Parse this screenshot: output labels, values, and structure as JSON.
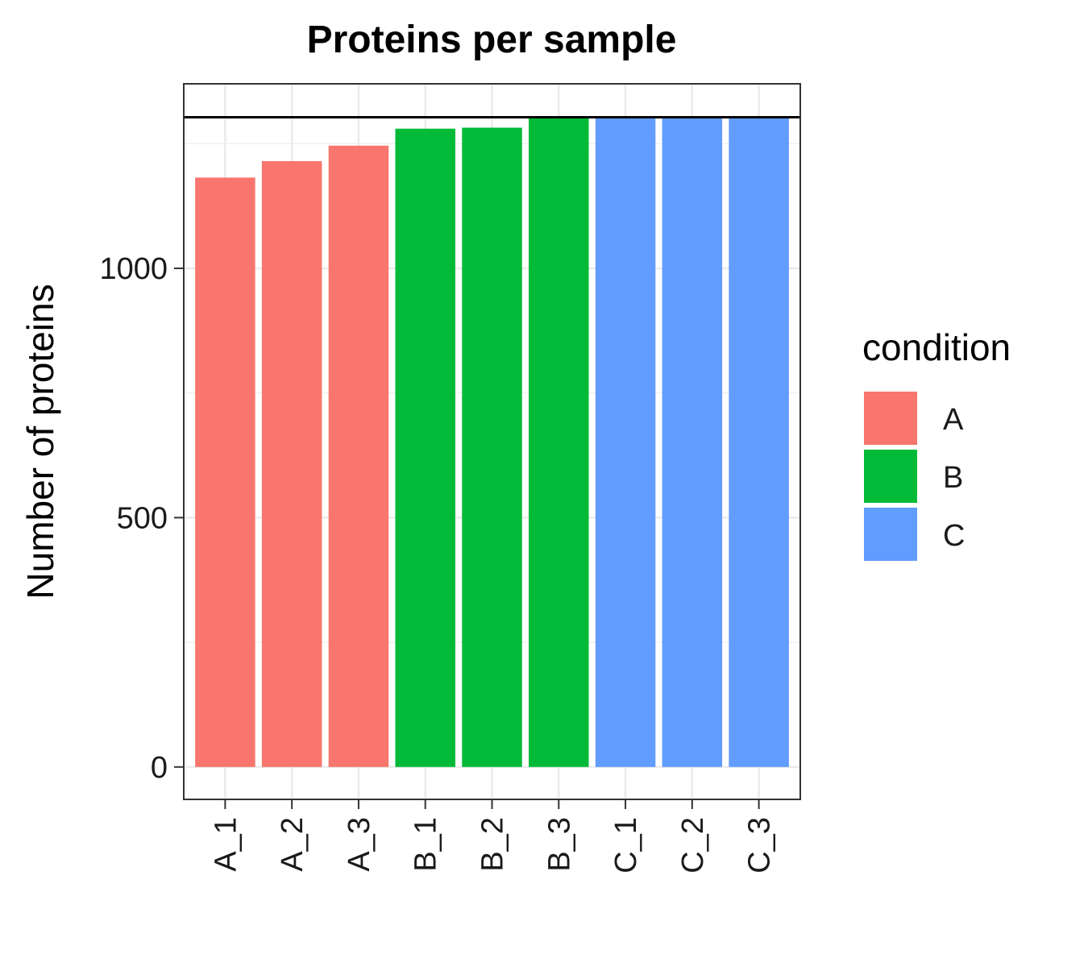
{
  "chart_data": {
    "type": "bar",
    "title": "Proteins per sample",
    "xlabel": "",
    "ylabel": "Number of proteins",
    "categories": [
      "A_1",
      "A_2",
      "A_3",
      "B_1",
      "B_2",
      "B_3",
      "C_1",
      "C_2",
      "C_3"
    ],
    "values": [
      1182,
      1215,
      1246,
      1280,
      1282,
      1303,
      1303,
      1303,
      1303
    ],
    "groups": [
      "A",
      "A",
      "A",
      "B",
      "B",
      "B",
      "C",
      "C",
      "C"
    ],
    "yticks": [
      0,
      500,
      1000
    ],
    "ylim": [
      -65,
      1370
    ],
    "hline": 1303,
    "grid": true,
    "legend": {
      "title": "condition",
      "position": "right",
      "entries": [
        {
          "label": "A",
          "color": "#F8766D"
        },
        {
          "label": "B",
          "color": "#00BA38"
        },
        {
          "label": "C",
          "color": "#619CFF"
        }
      ]
    }
  }
}
